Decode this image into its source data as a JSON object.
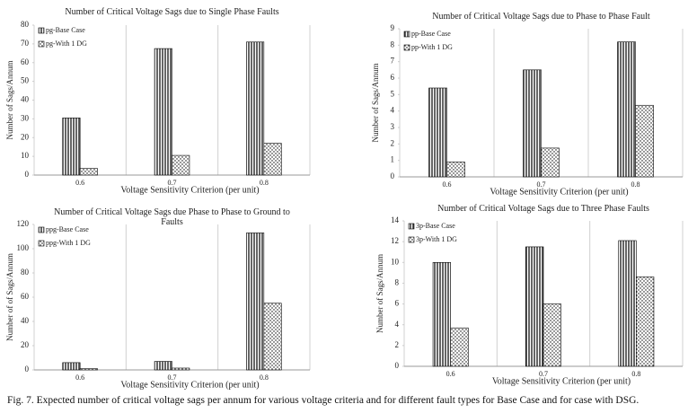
{
  "chart_data": [
    {
      "type": "bar",
      "title": "Number of Critical Voltage Sags due to Single Phase Faults",
      "x_label": "Voltage Sensitivity Criterion (per unit)",
      "y_label": "Number of Sags/Annum",
      "categories": [
        "0.6",
        "0.7",
        "0.8"
      ],
      "series": [
        {
          "name": "pg-Base Case",
          "color": "#000000",
          "values": [
            30.5,
            67.5,
            71
          ]
        },
        {
          "name": "pg-With 1 DG",
          "color": "#000000",
          "values": [
            3.5,
            10.5,
            17
          ]
        }
      ],
      "ylim": [
        0,
        80
      ],
      "yticks": [
        0,
        10,
        20,
        30,
        40,
        50,
        60,
        70,
        80
      ]
    },
    {
      "type": "bar",
      "title": "Number of Critical Voltage Sags due to Phase to Phase Fault",
      "x_label": "Voltage Sensitivity Criterion (per unit)",
      "y_label": "Number of Sags/Annum",
      "categories": [
        "0.6",
        "0.7",
        "0.8"
      ],
      "series": [
        {
          "name": "pp-Base Case",
          "color": "#000000",
          "values": [
            5.4,
            6.5,
            8.2
          ]
        },
        {
          "name": "pp-With 1 DG",
          "color": "#000000",
          "values": [
            0.9,
            1.75,
            4.35
          ]
        }
      ],
      "ylim": [
        0,
        9
      ],
      "yticks": [
        0,
        1,
        2,
        3,
        4,
        5,
        6,
        7,
        8,
        9
      ]
    },
    {
      "type": "bar",
      "title": "Number of Critical Voltage Sags due Phase to Phase to Ground to Faults",
      "x_label": "Voltage Sensitivity Criterion (per unit)",
      "y_label": "Number of of Sags/Annum",
      "categories": [
        "0.6",
        "0.7",
        "0.8"
      ],
      "series": [
        {
          "name": "ppg-Base Case",
          "color": "#000000",
          "values": [
            6,
            7,
            113
          ]
        },
        {
          "name": "ppg-With 1 DG",
          "color": "#000000",
          "values": [
            1,
            1.5,
            55
          ]
        }
      ],
      "ylim": [
        0,
        120
      ],
      "yticks": [
        0,
        20,
        40,
        60,
        80,
        100,
        120
      ]
    },
    {
      "type": "bar",
      "title": "Number of Critical Voltage Sags due to Three Phase Faults",
      "x_label": "Voltage Sensitivity Criterion (per unit)",
      "y_label": "Number of Sags/Annum",
      "categories": [
        "0.6",
        "0.7",
        "0.8"
      ],
      "series": [
        {
          "name": "3p-Base Case",
          "color": "#000000",
          "values": [
            10,
            11.5,
            12.1
          ]
        },
        {
          "name": "3p-With 1 DG",
          "color": "#000000",
          "values": [
            3.7,
            6,
            8.6
          ]
        }
      ],
      "ylim": [
        0,
        14
      ],
      "yticks": [
        0,
        2,
        4,
        6,
        8,
        10,
        12,
        14
      ]
    }
  ],
  "caption": "Fig. 7.  Expected number of critical voltage sags per annum for various voltage criteria and for different fault types for Base Case and for case with DSG."
}
